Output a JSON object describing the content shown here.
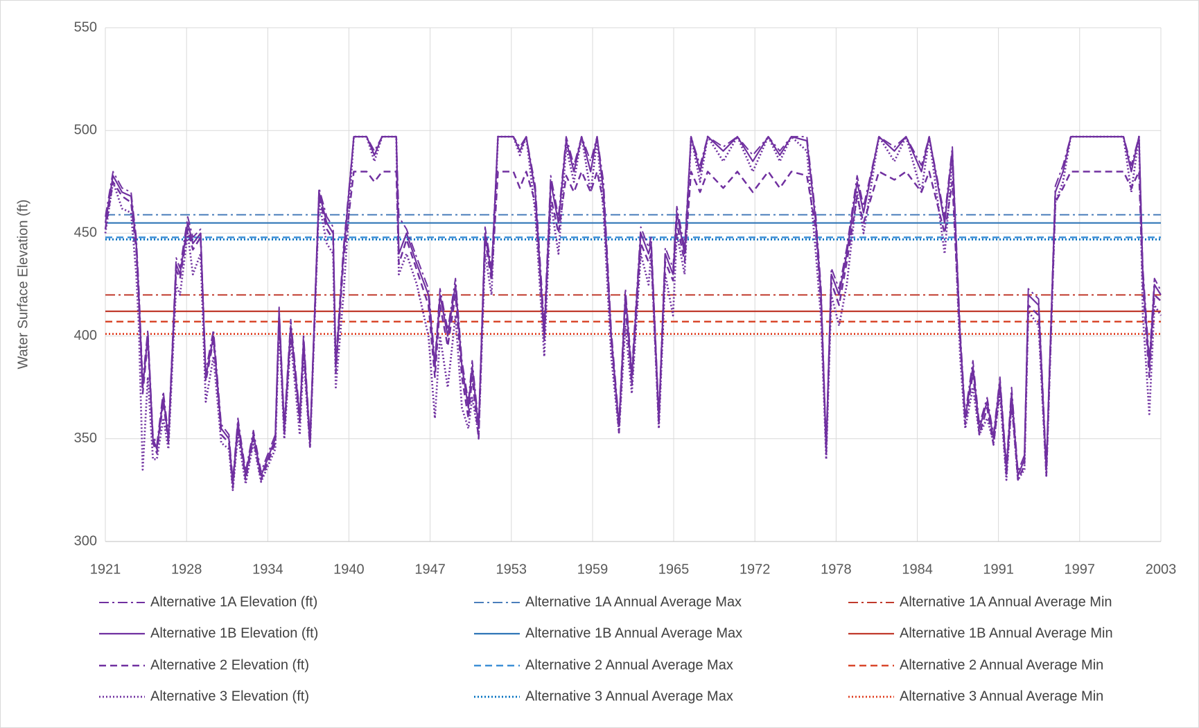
{
  "chart_data": {
    "type": "line",
    "y_label": "Water Surface Elevation (ft)",
    "x": [
      1921.8,
      1922.4,
      1923.1,
      1923.8,
      1924.2,
      1924.4,
      1924.7,
      1925.1,
      1925.5,
      1925.8,
      1926.3,
      1926.7,
      1927.3,
      1927.6,
      1928.2,
      1928.6,
      1929.2,
      1929.6,
      1930.2,
      1930.8,
      1931.4,
      1931.7,
      1932.1,
      1932.7,
      1933.3,
      1933.9,
      1935.0,
      1935.3,
      1935.7,
      1936.2,
      1936.9,
      1937.2,
      1937.7,
      1938.4,
      1939.0,
      1939.5,
      1939.7,
      1940.3,
      1941.1,
      1942.1,
      1942.7,
      1943.3,
      1944.4,
      1944.6,
      1945.2,
      1946.0,
      1946.9,
      1947.4,
      1947.8,
      1948.4,
      1949.0,
      1949.5,
      1950.0,
      1950.3,
      1950.8,
      1951.3,
      1951.8,
      1952.3,
      1953.5,
      1954.0,
      1954.5,
      1955.2,
      1955.9,
      1956.4,
      1957.0,
      1957.6,
      1958.2,
      1958.8,
      1959.5,
      1960.0,
      1960.5,
      1961.1,
      1961.7,
      1962.2,
      1962.7,
      1963.4,
      1964.0,
      1964.2,
      1964.8,
      1965.3,
      1965.9,
      1966.2,
      1966.8,
      1967.3,
      1968.0,
      1968.6,
      1969.8,
      1970.9,
      1972.1,
      1973.3,
      1974.2,
      1975.1,
      1976.3,
      1977.0,
      1977.4,
      1977.8,
      1978.2,
      1978.8,
      1979.4,
      1980.2,
      1980.7,
      1981.9,
      1983.1,
      1984.0,
      1985.2,
      1985.8,
      1987.0,
      1987.6,
      1988.2,
      1988.6,
      1989.2,
      1989.7,
      1990.3,
      1990.8,
      1991.3,
      1991.8,
      1992.2,
      1992.7,
      1993.2,
      1993.5,
      1994.3,
      1994.9,
      1995.6,
      1996.2,
      1996.8,
      1999.2,
      2000.9,
      2001.5,
      2002.1,
      2002.4,
      2002.9,
      2003.3,
      2003.8
    ],
    "xlim": [
      1921.8,
      2003.8
    ],
    "xticks": [
      {
        "value": 1921.8,
        "label": "1921"
      },
      {
        "value": 1928.11,
        "label": "1928"
      },
      {
        "value": 1934.42,
        "label": "1934"
      },
      {
        "value": 1940.72,
        "label": "1940"
      },
      {
        "value": 1947.03,
        "label": "1947"
      },
      {
        "value": 1953.34,
        "label": "1953"
      },
      {
        "value": 1959.65,
        "label": "1959"
      },
      {
        "value": 1965.95,
        "label": "1965"
      },
      {
        "value": 1972.26,
        "label": "1972"
      },
      {
        "value": 1978.57,
        "label": "1978"
      },
      {
        "value": 1984.88,
        "label": "1984"
      },
      {
        "value": 1991.18,
        "label": "1991"
      },
      {
        "value": 1997.49,
        "label": "1997"
      },
      {
        "value": 2003.8,
        "label": "2003"
      }
    ],
    "ylim": [
      300,
      550
    ],
    "yticks": [
      300,
      350,
      400,
      450,
      500,
      550
    ],
    "grid": true,
    "series": [
      {
        "name": "Alternative 1A Elevation (ft)",
        "color": "#7030a0",
        "dash": "dash-dot",
        "values": [
          458,
          480,
          472,
          470,
          448,
          424,
          378,
          403,
          352,
          347,
          373,
          352,
          438,
          433,
          458,
          448,
          452,
          383,
          403,
          357,
          352,
          330,
          360,
          334,
          354,
          334,
          352,
          414,
          357,
          408,
          362,
          401,
          350,
          472,
          458,
          453,
          388,
          443,
          497,
          497,
          490,
          497,
          497,
          458,
          452,
          438,
          423,
          388,
          423,
          403,
          428,
          388,
          368,
          388,
          357,
          453,
          433,
          497,
          497,
          492,
          497,
          473,
          405,
          478,
          458,
          497,
          483,
          497,
          485,
          497,
          475,
          403,
          358,
          423,
          383,
          453,
          443,
          448,
          362,
          443,
          433,
          463,
          443,
          497,
          483,
          497,
          492,
          497,
          488,
          497,
          490,
          497,
          497,
          458,
          423,
          347,
          433,
          423,
          443,
          478,
          463,
          497,
          492,
          497,
          483,
          497,
          458,
          492,
          403,
          362,
          388,
          357,
          370,
          352,
          380,
          337,
          375,
          334,
          342,
          423,
          418,
          337,
          473,
          483,
          497,
          497,
          497,
          483,
          497,
          433,
          388,
          428,
          422
        ]
      },
      {
        "name": "Alternative 1B Elevation (ft)",
        "color": "#7030a0",
        "dash": "solid",
        "values": [
          455,
          478,
          470,
          468,
          445,
          420,
          375,
          400,
          350,
          345,
          370,
          350,
          435,
          430,
          455,
          445,
          450,
          380,
          400,
          355,
          350,
          328,
          358,
          332,
          352,
          332,
          350,
          412,
          355,
          405,
          360,
          398,
          348,
          470,
          455,
          450,
          385,
          440,
          497,
          497,
          488,
          497,
          497,
          440,
          450,
          435,
          420,
          385,
          420,
          400,
          425,
          385,
          365,
          385,
          355,
          450,
          430,
          497,
          497,
          490,
          497,
          470,
          400,
          475,
          455,
          495,
          480,
          497,
          480,
          497,
          470,
          400,
          356,
          420,
          380,
          450,
          440,
          445,
          360,
          440,
          430,
          460,
          440,
          497,
          480,
          497,
          490,
          497,
          485,
          497,
          488,
          497,
          495,
          455,
          420,
          345,
          430,
          420,
          440,
          475,
          460,
          497,
          490,
          497,
          480,
          497,
          455,
          490,
          400,
          360,
          385,
          355,
          368,
          350,
          378,
          335,
          372,
          332,
          340,
          420,
          415,
          335,
          470,
          480,
          497,
          497,
          497,
          480,
          497,
          430,
          385,
          425,
          420
        ]
      },
      {
        "name": "Alternative 2 Elevation (ft)",
        "color": "#7030a0",
        "dash": "dashed",
        "values": [
          452,
          475,
          468,
          465,
          442,
          418,
          372,
          398,
          348,
          343,
          368,
          348,
          432,
          428,
          452,
          442,
          448,
          378,
          398,
          352,
          348,
          326,
          356,
          330,
          350,
          330,
          348,
          410,
          352,
          402,
          358,
          395,
          346,
          468,
          452,
          447,
          382,
          437,
          480,
          480,
          475,
          480,
          480,
          435,
          447,
          432,
          415,
          380,
          415,
          395,
          420,
          380,
          360,
          380,
          350,
          447,
          427,
          480,
          480,
          472,
          480,
          465,
          398,
          468,
          450,
          478,
          470,
          480,
          470,
          480,
          465,
          398,
          353,
          415,
          376,
          445,
          436,
          440,
          357,
          436,
          427,
          455,
          436,
          480,
          470,
          480,
          472,
          480,
          470,
          480,
          472,
          480,
          478,
          452,
          415,
          343,
          426,
          415,
          436,
          468,
          455,
          480,
          476,
          480,
          470,
          480,
          450,
          475,
          398,
          357,
          382,
          352,
          365,
          347,
          375,
          332,
          368,
          330,
          337,
          415,
          410,
          332,
          465,
          472,
          480,
          480,
          480,
          472,
          480,
          425,
          380,
          420,
          417
        ]
      },
      {
        "name": "Alternative 3 Elevation (ft)",
        "color": "#7030a0",
        "dash": "dotted",
        "values": [
          450,
          475,
          462,
          460,
          430,
          405,
          335,
          380,
          340,
          340,
          360,
          345,
          425,
          420,
          450,
          430,
          440,
          368,
          390,
          348,
          345,
          325,
          352,
          328,
          348,
          329,
          345,
          405,
          350,
          398,
          352,
          390,
          346,
          465,
          445,
          440,
          375,
          420,
          497,
          497,
          485,
          497,
          497,
          430,
          440,
          425,
          400,
          360,
          400,
          375,
          410,
          365,
          355,
          370,
          352,
          440,
          420,
          497,
          497,
          488,
          497,
          460,
          390,
          465,
          440,
          492,
          475,
          497,
          470,
          495,
          460,
          390,
          353,
          405,
          372,
          440,
          425,
          440,
          355,
          430,
          410,
          450,
          430,
          497,
          475,
          497,
          485,
          497,
          480,
          497,
          485,
          497,
          490,
          440,
          408,
          340,
          420,
          405,
          425,
          470,
          450,
          497,
          485,
          497,
          470,
          497,
          440,
          485,
          390,
          355,
          375,
          352,
          360,
          348,
          372,
          330,
          368,
          330,
          335,
          412,
          405,
          332,
          465,
          475,
          497,
          497,
          497,
          470,
          497,
          410,
          362,
          415,
          410
        ]
      }
    ],
    "reference_lines": [
      {
        "name": "Alternative 1A Annual Average Max",
        "color": "#4a7ebb",
        "dash": "dash-dot",
        "value": 459
      },
      {
        "name": "Alternative 1B Annual Average Max",
        "color": "#2e75b6",
        "dash": "solid",
        "value": 455
      },
      {
        "name": "Alternative 2 Annual Average Max",
        "color": "#3d8fd6",
        "dash": "dashed",
        "value": 448
      },
      {
        "name": "Alternative 3 Annual Average Max",
        "color": "#0070c0",
        "dash": "dotted",
        "value": 447
      },
      {
        "name": "Alternative 1A Annual Average Min",
        "color": "#c0392b",
        "dash": "dash-dot",
        "value": 420
      },
      {
        "name": "Alternative 1B Annual Average Min",
        "color": "#c0392b",
        "dash": "solid",
        "value": 412
      },
      {
        "name": "Alternative 2 Annual Average Min",
        "color": "#d9472b",
        "dash": "dashed",
        "value": 407
      },
      {
        "name": "Alternative 3 Annual Average Min",
        "color": "#e03c1f",
        "dash": "dotted",
        "value": 401
      }
    ]
  }
}
